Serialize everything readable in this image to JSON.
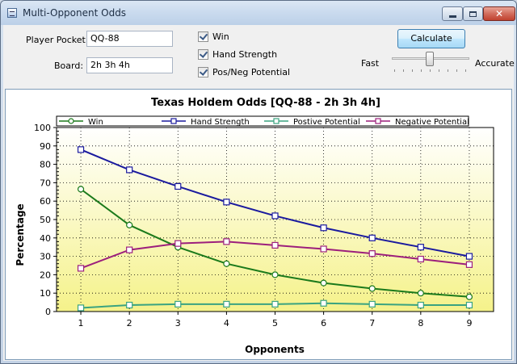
{
  "window": {
    "title": "Multi-Opponent Odds",
    "icon": "app-icon"
  },
  "form": {
    "player_pocket_label": "Player Pocket:",
    "player_pocket_value": "QQ-88",
    "board_label": "Board:",
    "board_value": "2h 3h 4h",
    "checkboxes": [
      {
        "label": "Win",
        "checked": true
      },
      {
        "label": "Hand Strength",
        "checked": true
      },
      {
        "label": "Pos/Neg Potential",
        "checked": true
      }
    ],
    "calculate_label": "Calculate",
    "slider": {
      "left_label": "Fast",
      "right_label": "Accurate",
      "value": 0.45
    }
  },
  "chart_data": {
    "type": "line",
    "title": "Texas Holdem Odds [QQ-88 - 2h 3h 4h]",
    "xlabel": "Opponents",
    "ylabel": "Percentage",
    "x": [
      1,
      2,
      3,
      4,
      5,
      6,
      7,
      8,
      9
    ],
    "xlim": [
      0.5,
      9.5
    ],
    "ylim": [
      0,
      100
    ],
    "yticks": [
      0,
      10,
      20,
      30,
      40,
      50,
      60,
      70,
      80,
      90,
      100
    ],
    "grid": true,
    "legend_position": "top",
    "series": [
      {
        "name": "Win",
        "color": "#1b7a1b",
        "marker": "circle",
        "values": [
          66.5,
          47,
          35,
          26,
          20,
          15.5,
          12.5,
          10,
          8
        ]
      },
      {
        "name": "Hand Strength",
        "color": "#1a1a9e",
        "marker": "square",
        "values": [
          88,
          77,
          68,
          59.5,
          52,
          45.5,
          40,
          35,
          30
        ]
      },
      {
        "name": "Postive Potential",
        "color": "#3aa380",
        "marker": "square",
        "values": [
          2,
          3.5,
          4,
          4,
          4,
          4.5,
          4,
          3.5,
          3.5
        ]
      },
      {
        "name": "Negative Potential",
        "color": "#9c1f7c",
        "marker": "square",
        "values": [
          23.5,
          33.5,
          37,
          38,
          36,
          34,
          31.5,
          28.5,
          25.5
        ]
      }
    ]
  }
}
